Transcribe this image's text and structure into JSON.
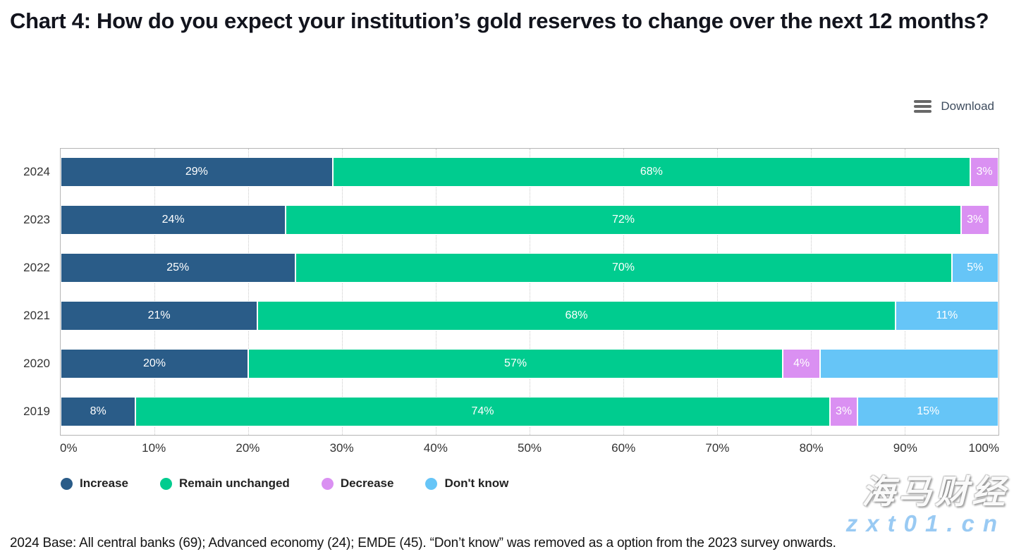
{
  "title": "Chart 4: How do you expect your institution’s gold reserves to change over the next 12 months?",
  "toolbar": {
    "download_label": "Download",
    "menu_icon": "hamburger-icon"
  },
  "chart_data": {
    "type": "bar",
    "orientation": "horizontal",
    "stacked": true,
    "title": "Chart 4: How do you expect your institution’s gold reserves to change over the next 12 months?",
    "categories": [
      "2024",
      "2023",
      "2022",
      "2021",
      "2020",
      "2019"
    ],
    "series": [
      {
        "name": "Increase",
        "color": "#2a5c88",
        "values": [
          29,
          24,
          25,
          21,
          20,
          8
        ],
        "labels": [
          "29%",
          "24%",
          "25%",
          "21%",
          "20%",
          "8%"
        ]
      },
      {
        "name": "Remain unchanged",
        "color": "#00cc8f",
        "values": [
          68,
          72,
          70,
          68,
          57,
          74
        ],
        "labels": [
          "68%",
          "72%",
          "70%",
          "68%",
          "57%",
          "74%"
        ]
      },
      {
        "name": "Decrease",
        "color": "#da90f2",
        "values": [
          3,
          3,
          0,
          0,
          4,
          3
        ],
        "labels": [
          "3%",
          "3%",
          "",
          "",
          "4%",
          "3%"
        ]
      },
      {
        "name": "Don't know",
        "color": "#66c5f7",
        "values": [
          0,
          0,
          5,
          11,
          19,
          15
        ],
        "labels": [
          "",
          "",
          "5%",
          "11%",
          "",
          "15%"
        ]
      }
    ],
    "xlabel": "",
    "ylabel": "",
    "xlim": [
      0,
      100
    ],
    "xticks": [
      "0%",
      "10%",
      "20%",
      "30%",
      "40%",
      "50%",
      "60%",
      "70%",
      "80%",
      "90%",
      "100%"
    ],
    "grid": "vertical-dotted",
    "legend_position": "bottom"
  },
  "footer": {
    "text": "2024 Base: All central banks (69); Advanced economy (24); EMDE (45). “Don’t know” was removed as a option from the 2023 survey onwards."
  },
  "watermark": {
    "line1": "海马财经",
    "line2": "zxt01.cn"
  }
}
